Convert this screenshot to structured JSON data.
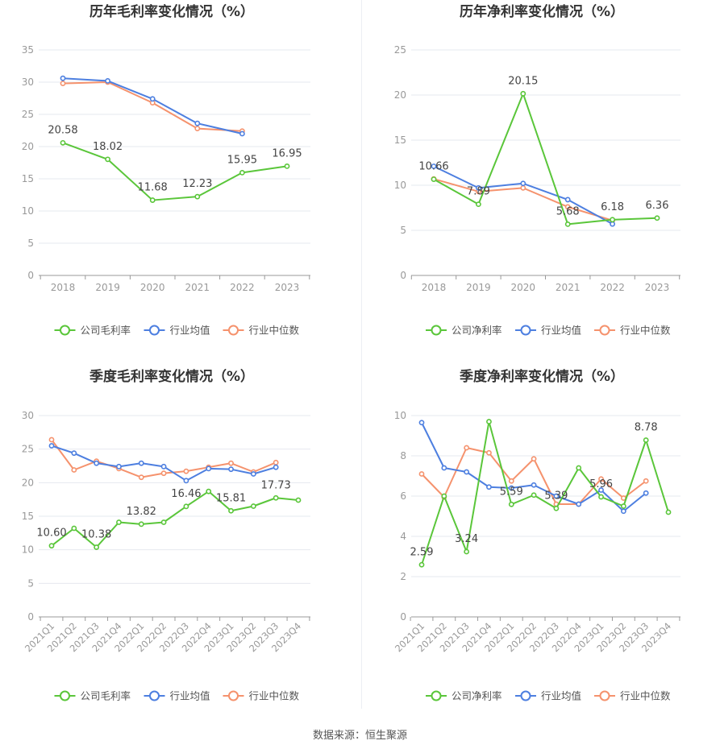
{
  "source_label": "数据来源：恒生聚源",
  "colors": {
    "company": "#5ac63a",
    "industry_avg": "#4d7fe0",
    "industry_median": "#f5926d",
    "grid": "#e6e8ef",
    "axis": "#999999",
    "tick_text": "#999999",
    "title_text": "#333333",
    "label_text": "#444444"
  },
  "chart_data": [
    {
      "id": "annual-gross",
      "type": "line",
      "title": "历年毛利率变化情况（%）",
      "categories": [
        "2018",
        "2019",
        "2020",
        "2021",
        "2022",
        "2023"
      ],
      "ylim": [
        0,
        35
      ],
      "yticks": [
        0,
        5,
        10,
        15,
        20,
        25,
        30,
        35
      ],
      "series": [
        {
          "key": "company",
          "name": "公司毛利率",
          "values": [
            20.58,
            18.02,
            11.68,
            12.23,
            15.95,
            16.95
          ],
          "labels": [
            "20.58",
            "18.02",
            "11.68",
            "12.23",
            "15.95",
            "16.95"
          ]
        },
        {
          "key": "industry_avg",
          "name": "行业均值",
          "values": [
            30.6,
            30.2,
            27.4,
            23.6,
            22.0,
            null
          ]
        },
        {
          "key": "industry_median",
          "name": "行业中位数",
          "values": [
            29.8,
            30.0,
            26.8,
            22.8,
            22.4,
            null
          ]
        }
      ]
    },
    {
      "id": "annual-net",
      "type": "line",
      "title": "历年净利率变化情况（%）",
      "categories": [
        "2018",
        "2019",
        "2020",
        "2021",
        "2022",
        "2023"
      ],
      "ylim": [
        0,
        25
      ],
      "yticks": [
        0,
        5,
        10,
        15,
        20,
        25
      ],
      "series": [
        {
          "key": "company",
          "name": "公司净利率",
          "values": [
            10.66,
            7.89,
            20.15,
            5.68,
            6.18,
            6.36
          ],
          "labels": [
            "10.66",
            "7.89",
            "20.15",
            "5.68",
            "6.18",
            "6.36"
          ]
        },
        {
          "key": "industry_avg",
          "name": "行业均值",
          "values": [
            12.1,
            9.7,
            10.2,
            8.4,
            5.7,
            null
          ]
        },
        {
          "key": "industry_median",
          "name": "行业中位数",
          "values": [
            10.7,
            9.3,
            9.7,
            7.6,
            6.1,
            null
          ]
        }
      ]
    },
    {
      "id": "quarterly-gross",
      "type": "line",
      "title": "季度毛利率变化情况（%）",
      "categories": [
        "2021Q1",
        "2021Q2",
        "2021Q3",
        "2021Q4",
        "2022Q1",
        "2022Q2",
        "2022Q3",
        "2022Q4",
        "2023Q1",
        "2023Q2",
        "2023Q3",
        "2023Q4"
      ],
      "ylim": [
        0,
        30
      ],
      "yticks": [
        0,
        5,
        10,
        15,
        20,
        25,
        30
      ],
      "series": [
        {
          "key": "company",
          "name": "公司毛利率",
          "values": [
            10.6,
            13.2,
            10.38,
            14.1,
            13.82,
            14.1,
            16.46,
            18.7,
            15.81,
            16.5,
            17.73,
            17.4
          ],
          "labels": [
            "10.60",
            null,
            "10.38",
            null,
            "13.82",
            null,
            "16.46",
            null,
            "15.81",
            null,
            "17.73",
            null
          ]
        },
        {
          "key": "industry_avg",
          "name": "行业均值",
          "values": [
            25.5,
            24.4,
            22.9,
            22.4,
            22.9,
            22.4,
            20.3,
            22.1,
            22.0,
            21.3,
            22.3,
            null
          ]
        },
        {
          "key": "industry_median",
          "name": "行业中位数",
          "values": [
            26.4,
            21.9,
            23.2,
            22.1,
            20.8,
            21.4,
            21.7,
            22.3,
            22.9,
            21.6,
            23.0,
            null
          ]
        }
      ]
    },
    {
      "id": "quarterly-net",
      "type": "line",
      "title": "季度净利率变化情况（%）",
      "categories": [
        "2021Q1",
        "2021Q2",
        "2021Q3",
        "2021Q4",
        "2022Q1",
        "2022Q2",
        "2022Q3",
        "2022Q4",
        "2023Q1",
        "2023Q2",
        "2023Q3",
        "2023Q4"
      ],
      "ylim": [
        0,
        10
      ],
      "yticks": [
        0,
        2,
        4,
        6,
        8,
        10
      ],
      "series": [
        {
          "key": "company",
          "name": "公司净利率",
          "values": [
            2.59,
            6.0,
            3.24,
            9.7,
            5.59,
            6.05,
            5.39,
            7.4,
            5.96,
            5.5,
            8.78,
            5.2
          ],
          "labels": [
            "2.59",
            null,
            "3.24",
            null,
            "5.59",
            null,
            "5.39",
            null,
            "5.96",
            null,
            "8.78",
            null
          ]
        },
        {
          "key": "industry_avg",
          "name": "行业均值",
          "values": [
            9.65,
            7.4,
            7.2,
            6.45,
            6.4,
            6.55,
            6.0,
            5.6,
            6.3,
            5.25,
            6.15,
            null
          ]
        },
        {
          "key": "industry_median",
          "name": "行业中位数",
          "values": [
            7.1,
            5.95,
            8.4,
            8.15,
            6.75,
            7.85,
            5.6,
            5.6,
            6.85,
            5.9,
            6.75,
            null
          ]
        }
      ]
    }
  ]
}
